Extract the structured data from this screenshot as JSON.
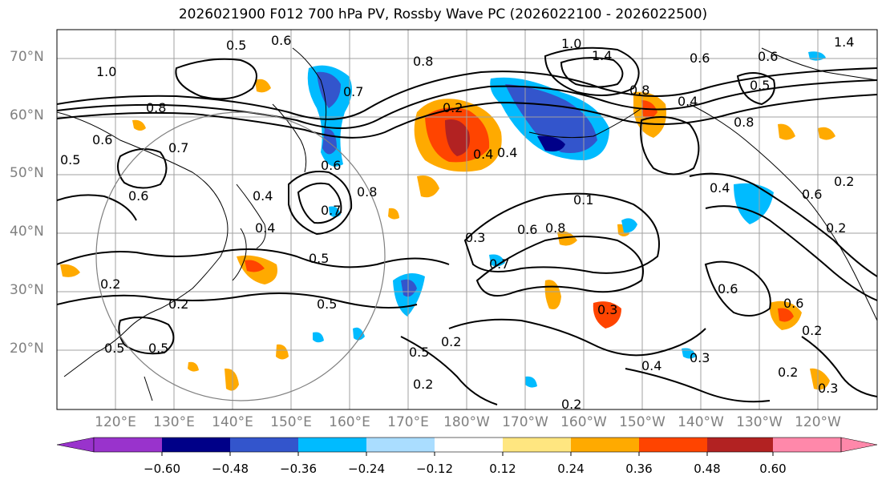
{
  "title": "2026021900 F012 700 hPa PV, Rossby Wave PC (2026022100 - 2026022500)",
  "map": {
    "lat_labels": [
      "70°N",
      "60°N",
      "50°N",
      "40°N",
      "30°N",
      "20°N"
    ],
    "lon_labels": [
      "120°E",
      "130°E",
      "140°E",
      "150°E",
      "160°E",
      "170°E",
      "180°W",
      "170°W",
      "160°W",
      "150°W",
      "140°W",
      "130°W",
      "120°W"
    ],
    "contour_labels": [
      "0.5",
      "0.6",
      "1.0",
      "0.8",
      "0.7",
      "1.0",
      "1.4",
      "0.6",
      "1.4",
      "0.8",
      "0.2",
      "0.4",
      "0.5",
      "0.4",
      "0.6",
      "0.8",
      "0.4",
      "0.2",
      "0.8",
      "0.7",
      "0.6",
      "0.4",
      "0.5",
      "0.6",
      "0.4",
      "0.6",
      "0.8",
      "0.7",
      "0.6",
      "0.1",
      "0.8",
      "0.3",
      "0.6",
      "0.5",
      "0.7",
      "0.2",
      "0.5",
      "0.5",
      "0.2",
      "0.4",
      "0.3",
      "0.2",
      "0.2",
      "0.5",
      "0.2",
      "0.6",
      "0.6",
      "0.2",
      "0.2",
      "0.3",
      "0.4",
      "0.2",
      "0.3",
      "0.5"
    ]
  },
  "colorbar": {
    "ticks": [
      "−0.60",
      "−0.48",
      "−0.36",
      "−0.24",
      "−0.12",
      "0.12",
      "0.24",
      "0.36",
      "0.48",
      "0.60"
    ],
    "colors": [
      "#9933cc",
      "#000088",
      "#3355cc",
      "#00bbff",
      "#aaddff",
      "#ffffff",
      "#ffe680",
      "#ffaa00",
      "#ff4400",
      "#b22222",
      "#ff88aa"
    ]
  }
}
